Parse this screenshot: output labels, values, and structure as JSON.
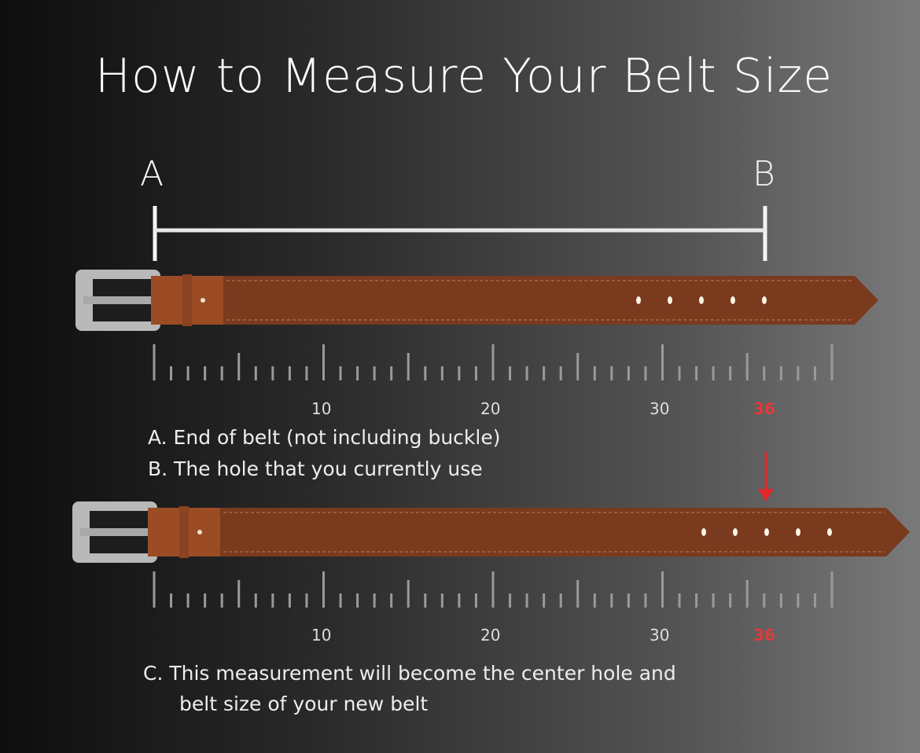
{
  "title": "How to Measure Your Belt Size",
  "markers": {
    "a": "A",
    "b": "B"
  },
  "ruler": {
    "labels": [
      "10",
      "20",
      "30"
    ],
    "highlight": "36",
    "highlight_color": "#e03a3a"
  },
  "notes": {
    "a": "A. End of belt (not including buckle)",
    "b": "B. The hole that you currently use",
    "c1": "C. This measurement will become the center hole and",
    "c2": "belt size of your new belt"
  },
  "colors": {
    "belt": "#7a3a1e",
    "belt_light": "#9b4c25",
    "buckle": "#b9b9b9",
    "arrow": "#e0282c"
  }
}
